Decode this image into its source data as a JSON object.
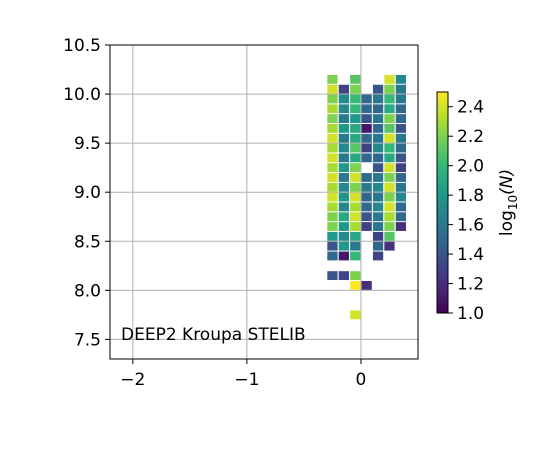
{
  "chart_data": {
    "type": "heatmap",
    "annotation": "DEEP2 Kroupa STELIB",
    "xlim": [
      -2.2,
      0.5
    ],
    "ylim": [
      7.3,
      10.5
    ],
    "x_ticks": [
      -2,
      -1,
      0
    ],
    "x_tick_labels": [
      "−2",
      "−1",
      "0"
    ],
    "y_ticks": [
      7.5,
      8.0,
      8.5,
      9.0,
      9.5,
      10.0,
      10.5
    ],
    "y_tick_labels": [
      "7.5",
      "8.0",
      "8.5",
      "9.0",
      "9.5",
      "10.0",
      "10.5"
    ],
    "grid": true,
    "colormap": "viridis",
    "colorbar": {
      "label": "log10(N)",
      "label_main": "log",
      "label_sub": "10",
      "label_rest": "(N)",
      "range": [
        1.0,
        2.5
      ],
      "ticks": [
        1.0,
        1.2,
        1.4,
        1.6,
        1.8,
        2.0,
        2.2,
        2.4
      ],
      "tick_labels": [
        "1.0",
        "1.2",
        "1.4",
        "1.6",
        "1.8",
        "2.0",
        "2.2",
        "2.4"
      ]
    },
    "bins": {
      "x_centers": [
        -0.25,
        -0.15,
        -0.05,
        0.05,
        0.15,
        0.25,
        0.35
      ],
      "x_width": 0.09,
      "y_height": 0.09,
      "columns": [
        {
          "x": -0.25,
          "cells": [
            [
              10.15,
              2.2
            ],
            [
              10.05,
              2.4
            ],
            [
              9.95,
              2.2
            ],
            [
              9.85,
              2.3
            ],
            [
              9.75,
              2.2
            ],
            [
              9.65,
              2.3
            ],
            [
              9.55,
              2.4
            ],
            [
              9.45,
              2.3
            ],
            [
              9.35,
              2.4
            ],
            [
              9.25,
              2.3
            ],
            [
              9.15,
              2.4
            ],
            [
              9.05,
              2.3
            ],
            [
              8.95,
              2.4
            ],
            [
              8.85,
              2.3
            ],
            [
              8.75,
              2.2
            ],
            [
              8.65,
              2.2
            ],
            [
              8.55,
              1.8
            ],
            [
              8.45,
              1.4
            ],
            [
              8.35,
              1.5
            ],
            [
              8.15,
              1.4
            ]
          ]
        },
        {
          "x": -0.15,
          "cells": [
            [
              10.05,
              1.3
            ],
            [
              9.95,
              1.7
            ],
            [
              9.85,
              1.7
            ],
            [
              9.75,
              1.6
            ],
            [
              9.65,
              1.8
            ],
            [
              9.55,
              1.6
            ],
            [
              9.45,
              1.7
            ],
            [
              9.35,
              1.6
            ],
            [
              9.25,
              1.8
            ],
            [
              9.15,
              1.6
            ],
            [
              9.05,
              1.7
            ],
            [
              8.95,
              1.8
            ],
            [
              8.85,
              1.7
            ],
            [
              8.75,
              1.9
            ],
            [
              8.65,
              1.8
            ],
            [
              8.55,
              1.7
            ],
            [
              8.45,
              1.8
            ],
            [
              8.35,
              1.1
            ],
            [
              8.15,
              1.3
            ]
          ]
        },
        {
          "x": -0.05,
          "cells": [
            [
              10.15,
              2.1
            ],
            [
              10.05,
              2.2
            ],
            [
              9.95,
              2.0
            ],
            [
              9.85,
              2.0
            ],
            [
              9.75,
              1.8
            ],
            [
              9.65,
              1.9
            ],
            [
              9.55,
              1.9
            ],
            [
              9.45,
              2.1
            ],
            [
              9.35,
              1.9
            ],
            [
              9.25,
              2.2
            ],
            [
              9.15,
              2.4
            ],
            [
              9.05,
              2.2
            ],
            [
              8.95,
              2.4
            ],
            [
              8.85,
              2.3
            ],
            [
              8.75,
              2.4
            ],
            [
              8.65,
              2.3
            ],
            [
              8.55,
              1.9
            ],
            [
              8.45,
              1.6
            ],
            [
              8.35,
              2.0
            ],
            [
              8.15,
              2.2
            ],
            [
              8.05,
              2.5
            ],
            [
              7.75,
              2.4
            ]
          ]
        },
        {
          "x": 0.05,
          "cells": [
            [
              9.95,
              1.5
            ],
            [
              9.85,
              1.5
            ],
            [
              9.75,
              1.4
            ],
            [
              9.65,
              1.1
            ],
            [
              9.55,
              1.5
            ],
            [
              9.45,
              1.3
            ],
            [
              9.35,
              1.5
            ],
            [
              9.15,
              1.5
            ],
            [
              9.05,
              1.6
            ],
            [
              8.95,
              1.5
            ],
            [
              8.85,
              1.5
            ],
            [
              8.75,
              1.4
            ],
            [
              8.65,
              1.3
            ],
            [
              8.05,
              1.2
            ]
          ]
        },
        {
          "x": 0.15,
          "cells": [
            [
              10.05,
              1.4
            ],
            [
              9.95,
              1.6
            ],
            [
              9.85,
              1.5
            ],
            [
              9.75,
              1.6
            ],
            [
              9.65,
              1.5
            ],
            [
              9.55,
              1.6
            ],
            [
              9.45,
              1.7
            ],
            [
              9.35,
              1.5
            ],
            [
              9.25,
              1.4
            ],
            [
              9.15,
              1.6
            ],
            [
              9.05,
              1.7
            ],
            [
              8.95,
              1.6
            ],
            [
              8.85,
              1.7
            ],
            [
              8.75,
              1.6
            ],
            [
              8.65,
              1.6
            ],
            [
              8.55,
              1.3
            ],
            [
              8.45,
              1.5
            ],
            [
              8.35,
              1.3
            ]
          ]
        },
        {
          "x": 0.25,
          "cells": [
            [
              10.15,
              2.4
            ],
            [
              10.05,
              2.2
            ],
            [
              9.95,
              2.0
            ],
            [
              9.85,
              1.9
            ],
            [
              9.75,
              2.2
            ],
            [
              9.65,
              2.1
            ],
            [
              9.55,
              2.4
            ],
            [
              9.45,
              2.0
            ],
            [
              9.35,
              1.9
            ],
            [
              9.25,
              2.4
            ],
            [
              9.15,
              2.2
            ],
            [
              9.05,
              2.4
            ],
            [
              8.95,
              2.2
            ],
            [
              8.85,
              2.4
            ],
            [
              8.75,
              2.3
            ],
            [
              8.65,
              2.2
            ],
            [
              8.55,
              2.1
            ],
            [
              8.45,
              1.2
            ]
          ]
        },
        {
          "x": 0.35,
          "cells": [
            [
              10.15,
              1.7
            ],
            [
              10.05,
              1.6
            ],
            [
              9.95,
              1.6
            ],
            [
              9.85,
              1.5
            ],
            [
              9.75,
              1.5
            ],
            [
              9.65,
              1.4
            ],
            [
              9.55,
              1.6
            ],
            [
              9.45,
              1.5
            ],
            [
              9.35,
              1.4
            ],
            [
              9.25,
              1.3
            ],
            [
              9.15,
              1.5
            ],
            [
              9.05,
              1.6
            ],
            [
              8.95,
              1.7
            ],
            [
              8.85,
              1.5
            ],
            [
              8.75,
              1.5
            ],
            [
              8.65,
              1.2
            ]
          ]
        }
      ]
    }
  },
  "colors": {
    "viridis": [
      "#440154",
      "#482878",
      "#3e4989",
      "#31688e",
      "#26828e",
      "#1f9e89",
      "#35b779",
      "#6ece58",
      "#b5de2b",
      "#fde725"
    ],
    "grid": "#b0b0b0",
    "axes": "#000000"
  }
}
